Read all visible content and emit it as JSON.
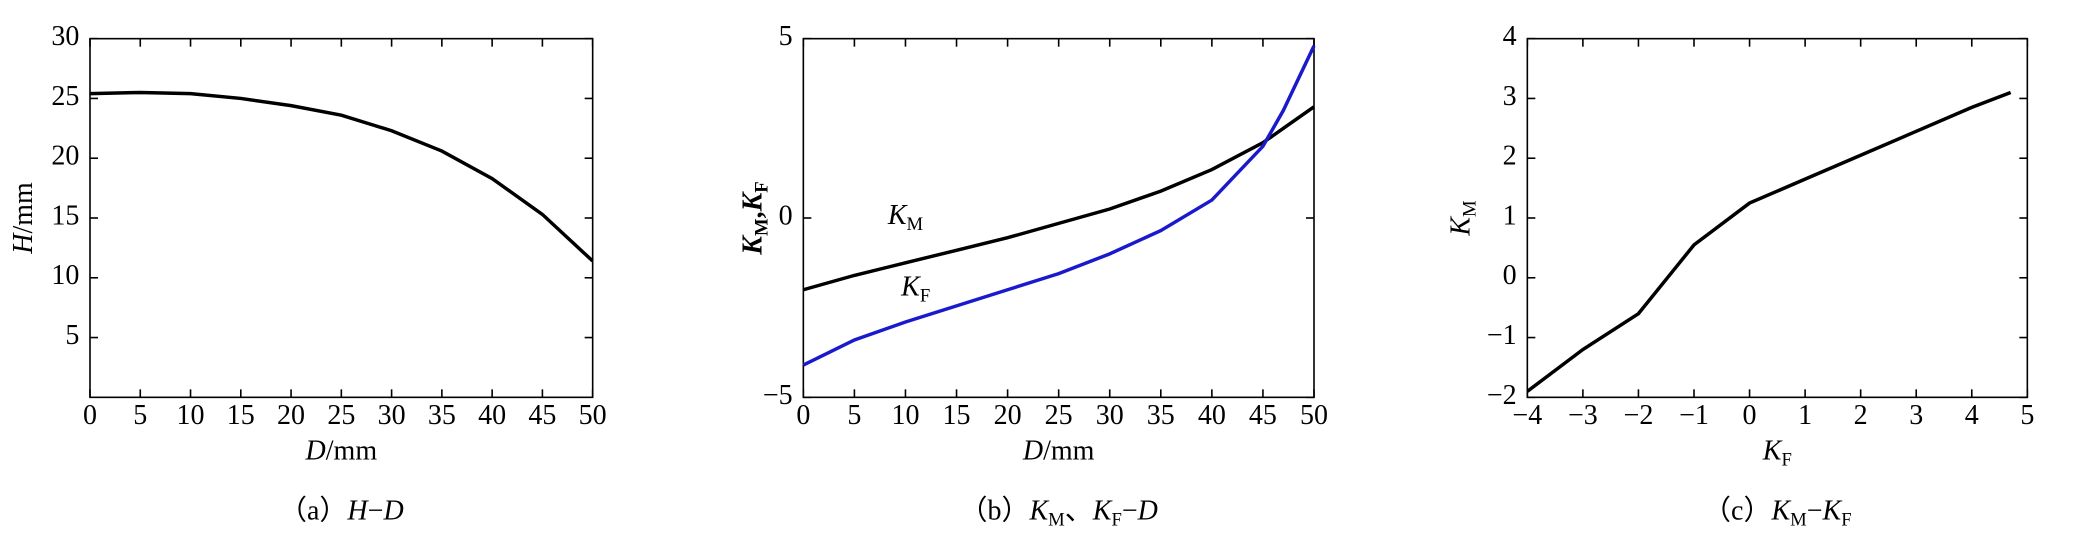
{
  "chart_data": [
    {
      "type": "line",
      "x": [
        0,
        5,
        10,
        15,
        20,
        25,
        30,
        35,
        40,
        45,
        50
      ],
      "series": [
        {
          "color": "#000000",
          "values": [
            25.4,
            25.5,
            25.4,
            25.0,
            24.4,
            23.6,
            22.3,
            20.6,
            18.3,
            15.3,
            11.4
          ]
        }
      ],
      "xlim": [
        0,
        50
      ],
      "xticks": [
        0,
        5,
        10,
        15,
        20,
        25,
        30,
        35,
        40,
        45,
        50
      ],
      "ylim": [
        0,
        30
      ],
      "yticks": [
        5,
        10,
        15,
        20,
        25,
        30
      ],
      "xlabel": [
        [
          "D",
          ""
        ],
        "/mm"
      ],
      "ylabel": [
        [
          "H",
          ""
        ],
        "/mm"
      ],
      "caption": {
        "label": "（a）",
        "expr": [
          [
            "H",
            ""
          ],
          "−",
          [
            "D",
            ""
          ]
        ]
      }
    },
    {
      "type": "line",
      "x": [
        0,
        5,
        10,
        15,
        20,
        25,
        30,
        35,
        40,
        45,
        47,
        50
      ],
      "series": [
        {
          "color": "#000000",
          "values": [
            -2.0,
            -1.6,
            -1.25,
            -0.9,
            -0.55,
            -0.15,
            0.25,
            0.75,
            1.35,
            2.1,
            2.5,
            3.1
          ]
        },
        {
          "color": "#1a1acc",
          "values": [
            -4.1,
            -3.4,
            -2.9,
            -2.45,
            -2.0,
            -1.55,
            -1.0,
            -0.35,
            0.5,
            2.0,
            3.0,
            4.8
          ]
        }
      ],
      "xlim": [
        0,
        50
      ],
      "xticks": [
        0,
        5,
        10,
        15,
        20,
        25,
        30,
        35,
        40,
        45,
        50
      ],
      "ylim": [
        -5,
        5
      ],
      "yticks": [
        {
          "value": -5,
          "label": "−5"
        },
        0,
        5
      ],
      "xlabel": [
        [
          "D",
          ""
        ],
        "/mm"
      ],
      "ylabel": [
        [
          "K",
          "M"
        ],
        ",",
        [
          "K",
          "F"
        ]
      ],
      "annotations": [
        [
          [
            "K",
            "M"
          ]
        ],
        [
          [
            "K",
            "F"
          ]
        ]
      ],
      "caption": {
        "label": "（b）",
        "expr": [
          [
            "K",
            "M"
          ],
          "、",
          [
            "K",
            "F"
          ],
          "−",
          [
            "D",
            ""
          ]
        ]
      }
    },
    {
      "type": "line",
      "x": [
        -4,
        -3,
        -2,
        -1,
        0,
        1,
        2,
        3,
        4,
        4.7
      ],
      "series": [
        {
          "color": "#000000",
          "values": [
            -1.9,
            -1.2,
            -0.6,
            0.55,
            1.25,
            1.65,
            2.05,
            2.45,
            2.85,
            3.1
          ]
        }
      ],
      "xlim": [
        -4,
        5
      ],
      "xticks": [
        {
          "value": -4,
          "label": "−4"
        },
        {
          "value": -3,
          "label": "−3"
        },
        {
          "value": -2,
          "label": "−2"
        },
        {
          "value": -1,
          "label": "−1"
        },
        0,
        1,
        2,
        3,
        4,
        5
      ],
      "ylim": [
        -2,
        4
      ],
      "yticks": [
        {
          "value": -2,
          "label": "−2"
        },
        {
          "value": -1,
          "label": "−1"
        },
        0,
        1,
        2,
        3,
        4
      ],
      "xlabel": [
        [
          "K",
          "F"
        ]
      ],
      "ylabel": [
        [
          "K",
          "M"
        ]
      ],
      "caption": {
        "label": "（c）",
        "expr": [
          [
            "K",
            "M"
          ],
          "−",
          [
            "K",
            "F"
          ]
        ]
      }
    }
  ]
}
